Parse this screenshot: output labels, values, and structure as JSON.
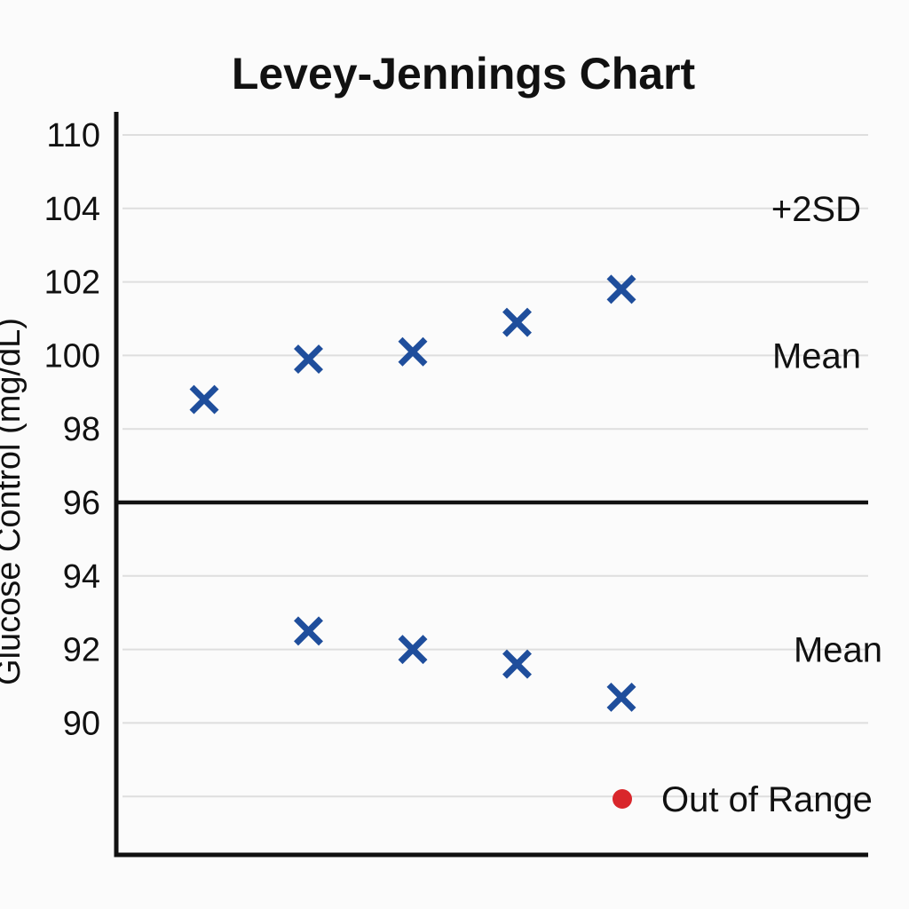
{
  "chart_data": {
    "type": "scatter",
    "title": "Levey-Jennings Chart",
    "ylabel": "Glucose Control (mg/dL)",
    "xlabel": "",
    "y_ticks": [
      "110",
      "104",
      "102",
      "100",
      "98",
      "96",
      "94",
      "92",
      "90"
    ],
    "y_tick_values": [
      110,
      104,
      102,
      100,
      98,
      96,
      94,
      92,
      90
    ],
    "grid": true,
    "x": [
      1,
      2,
      3,
      4,
      5
    ],
    "series": [
      {
        "values": [
          98.8,
          99.9,
          100.1,
          100.9,
          101.8
        ],
        "marker": "x",
        "color": "#1f4e9c"
      },
      {
        "values": [
          null,
          92.5,
          92.0,
          91.6,
          90.7
        ],
        "marker": "x",
        "color": "#1f4e9c"
      }
    ],
    "reference_lines": [
      {
        "label": "+2SD",
        "y": 104
      },
      {
        "label": "Mean",
        "y": 100
      },
      {
        "label": "",
        "y": 96
      },
      {
        "label": "Mean",
        "y": 92
      }
    ],
    "legend": {
      "placement": "bottom-right",
      "entries": [
        {
          "label": "Out of Range",
          "color": "#d9262b",
          "marker": "circle"
        }
      ]
    }
  }
}
